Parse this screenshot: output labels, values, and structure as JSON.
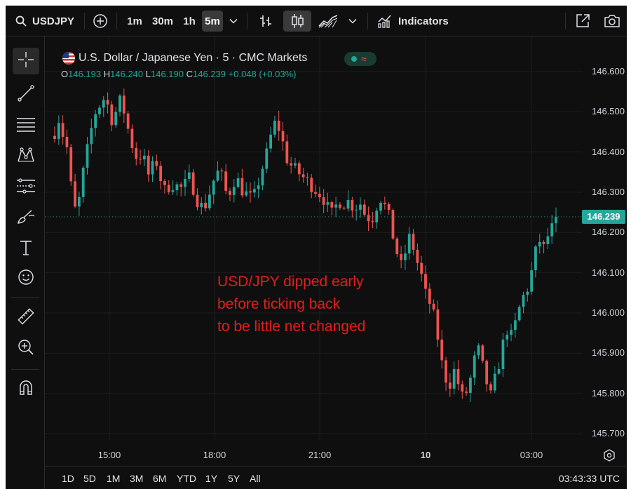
{
  "toolbar": {
    "symbol": "USDJPY",
    "intervals": [
      "1m",
      "30m",
      "1h",
      "5m"
    ],
    "active_interval": "5m",
    "indicators_label": "Indicators",
    "icons": [
      "search-icon",
      "add-compare-icon",
      "chevron-down-icon",
      "bar-style-icon",
      "candles-icon",
      "area-icon",
      "indicators-icon",
      "fullscreen-icon",
      "camera-icon"
    ]
  },
  "left_tools": [
    "crosshair-icon",
    "trend-line-icon",
    "fib-icon",
    "pattern-icon",
    "projection-icon",
    "brush-icon",
    "text-icon",
    "emoji-icon",
    "ruler-icon",
    "zoom-in-icon",
    "magnet-icon"
  ],
  "legend": {
    "title": "U.S. Dollar / Japanese Yen · 5 · CMC Markets",
    "o_label": "O",
    "o_value": "146.193",
    "h_label": "H",
    "h_value": "146.240",
    "l_label": "L",
    "l_value": "146.190",
    "c_label": "C",
    "c_value": "146.239",
    "change": "+0.048 (+0.03%)",
    "status_icon": "≈"
  },
  "price_axis": {
    "labels": [
      "146.600",
      "146.500",
      "146.400",
      "146.300",
      "146.200",
      "146.100",
      "146.000",
      "145.900",
      "145.800",
      "145.700"
    ],
    "current_price": "146.239"
  },
  "time_axis": {
    "labels": [
      "15:00",
      "18:00",
      "21:00",
      "10",
      "03:00"
    ]
  },
  "annotation": {
    "line1": "USD/JPY dipped early",
    "line2": "before ticking back",
    "line3": "to be little net changed"
  },
  "ranges": [
    "1D",
    "5D",
    "1M",
    "3M",
    "6M",
    "YTD",
    "1Y",
    "5Y",
    "All"
  ],
  "clock": "03:43:33 UTC",
  "colors": {
    "up": "#26a69a",
    "down": "#ef5350",
    "annotation": "#e41e1e",
    "background": "#0f0f0f"
  },
  "chart_data": {
    "type": "candlestick",
    "ylim": [
      145.7,
      146.6
    ],
    "close_path": [
      [
        0,
        146.45
      ],
      [
        3,
        146.5
      ],
      [
        8,
        146.47
      ],
      [
        14,
        146.43
      ],
      [
        20,
        146.4
      ],
      [
        26,
        146.27
      ],
      [
        32,
        146.25
      ],
      [
        38,
        146.3
      ],
      [
        44,
        146.38
      ],
      [
        50,
        146.42
      ],
      [
        56,
        146.48
      ],
      [
        62,
        146.51
      ],
      [
        68,
        146.52
      ],
      [
        74,
        146.54
      ],
      [
        80,
        146.5
      ],
      [
        86,
        146.47
      ],
      [
        92,
        146.52
      ],
      [
        98,
        146.53
      ],
      [
        104,
        146.48
      ],
      [
        110,
        146.44
      ],
      [
        116,
        146.4
      ],
      [
        122,
        146.38
      ],
      [
        128,
        146.4
      ],
      [
        134,
        146.36
      ],
      [
        140,
        146.33
      ],
      [
        146,
        146.39
      ],
      [
        152,
        146.36
      ],
      [
        158,
        146.31
      ],
      [
        164,
        146.3
      ],
      [
        170,
        146.33
      ],
      [
        176,
        146.31
      ],
      [
        182,
        146.32
      ],
      [
        188,
        146.3
      ],
      [
        194,
        146.34
      ],
      [
        200,
        146.33
      ],
      [
        206,
        146.29
      ],
      [
        212,
        146.27
      ],
      [
        218,
        146.26
      ],
      [
        224,
        146.28
      ],
      [
        230,
        146.32
      ],
      [
        236,
        146.34
      ],
      [
        242,
        146.36
      ],
      [
        248,
        146.31
      ],
      [
        254,
        146.29
      ],
      [
        260,
        146.32
      ],
      [
        266,
        146.34
      ],
      [
        272,
        146.31
      ],
      [
        278,
        146.3
      ],
      [
        284,
        146.29
      ],
      [
        290,
        146.28
      ],
      [
        296,
        146.31
      ],
      [
        302,
        146.35
      ],
      [
        308,
        146.38
      ],
      [
        314,
        146.42
      ],
      [
        320,
        146.47
      ],
      [
        326,
        146.47
      ],
      [
        332,
        146.44
      ],
      [
        338,
        146.39
      ],
      [
        344,
        146.37
      ],
      [
        350,
        146.36
      ],
      [
        356,
        146.35
      ],
      [
        362,
        146.34
      ],
      [
        368,
        146.33
      ],
      [
        374,
        146.32
      ],
      [
        380,
        146.31
      ],
      [
        386,
        146.3
      ],
      [
        392,
        146.29
      ],
      [
        398,
        146.27
      ],
      [
        404,
        146.24
      ],
      [
        410,
        146.26
      ],
      [
        416,
        146.28
      ],
      [
        422,
        146.27
      ],
      [
        428,
        146.28
      ],
      [
        434,
        146.27
      ],
      [
        440,
        146.26
      ],
      [
        446,
        146.28
      ],
      [
        452,
        146.25
      ],
      [
        458,
        146.24
      ],
      [
        464,
        146.23
      ],
      [
        470,
        146.26
      ],
      [
        476,
        146.29
      ],
      [
        482,
        146.27
      ],
      [
        488,
        146.25
      ],
      [
        494,
        146.2
      ],
      [
        500,
        146.16
      ],
      [
        506,
        146.11
      ],
      [
        512,
        146.14
      ],
      [
        518,
        146.19
      ],
      [
        524,
        146.17
      ],
      [
        530,
        146.13
      ],
      [
        536,
        146.1
      ],
      [
        542,
        146.05
      ],
      [
        548,
        146.03
      ],
      [
        554,
        146.0
      ],
      [
        560,
        145.95
      ],
      [
        566,
        145.88
      ],
      [
        572,
        145.84
      ],
      [
        578,
        145.82
      ],
      [
        584,
        145.86
      ],
      [
        590,
        145.83
      ],
      [
        596,
        145.79
      ],
      [
        602,
        145.8
      ],
      [
        608,
        145.83
      ],
      [
        614,
        145.88
      ],
      [
        620,
        145.91
      ],
      [
        626,
        145.87
      ],
      [
        632,
        145.83
      ],
      [
        638,
        145.79
      ],
      [
        644,
        145.83
      ],
      [
        650,
        145.87
      ],
      [
        656,
        145.92
      ],
      [
        662,
        145.96
      ],
      [
        668,
        145.94
      ],
      [
        674,
        145.97
      ],
      [
        680,
        146.01
      ],
      [
        686,
        146.04
      ],
      [
        692,
        146.06
      ],
      [
        698,
        146.1
      ],
      [
        704,
        146.15
      ],
      [
        710,
        146.18
      ],
      [
        716,
        146.16
      ],
      [
        722,
        146.19
      ],
      [
        728,
        146.21
      ],
      [
        734,
        146.239
      ]
    ]
  }
}
